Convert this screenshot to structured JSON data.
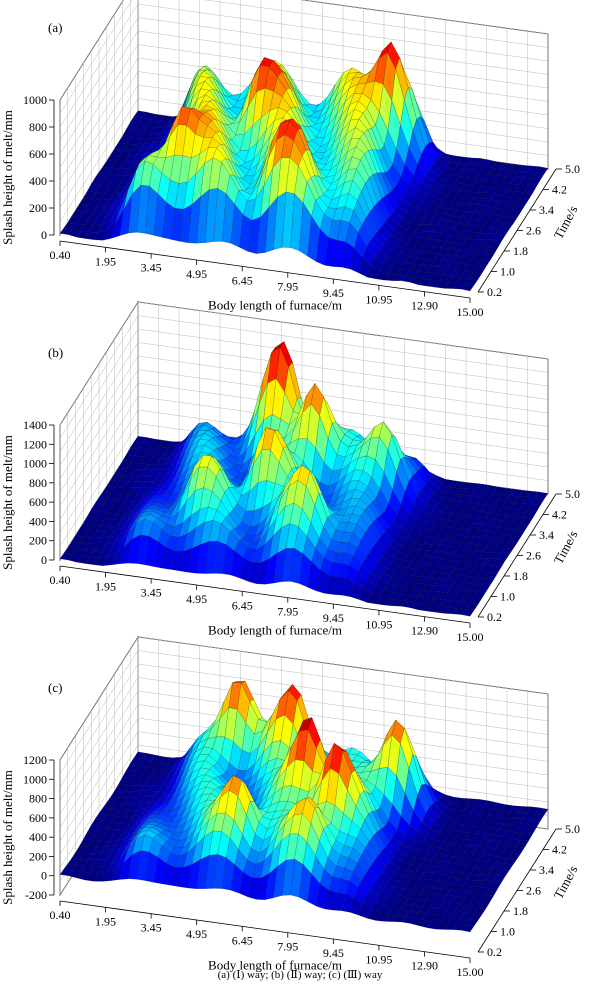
{
  "caption": "(a) (Ⅰ) way; (b) (Ⅱ) way; (c) (Ⅲ) way",
  "chart_data": [
    {
      "type": "surface3d",
      "panel_label": "(a)",
      "xlabel": "Body length of furnace/m",
      "ylabel": "Time/s",
      "zlabel": "Splash height of melt/mm",
      "x_ticks": [
        "0.40",
        "1.95",
        "3.45",
        "4.95",
        "6.45",
        "7.95",
        "9.45",
        "10.95",
        "12.90",
        "15.00"
      ],
      "y_ticks": [
        "0.2",
        "1.0",
        "1.8",
        "2.6",
        "3.4",
        "4.2",
        "5.0"
      ],
      "z_ticks": [
        "0",
        "200",
        "400",
        "600",
        "800",
        "1000"
      ],
      "xlim": [
        0.4,
        15.0
      ],
      "ylim": [
        0.2,
        5.0
      ],
      "zlim": [
        0,
        1000
      ],
      "colormap": "jet",
      "peaks": [
        {
          "x": 4.2,
          "t": 1.4,
          "z": 850
        },
        {
          "x": 8.0,
          "t": 1.2,
          "z": 880
        },
        {
          "x": 6.0,
          "t": 3.2,
          "z": 900
        },
        {
          "x": 9.8,
          "t": 4.2,
          "z": 950
        }
      ],
      "active_x_range": [
        2.5,
        10.6
      ],
      "plateau_z": 650
    },
    {
      "type": "surface3d",
      "panel_label": "(b)",
      "xlabel": "Body length of furnace/m",
      "ylabel": "Time/s",
      "zlabel": "Splash height of melt/mm",
      "x_ticks": [
        "0.40",
        "1.95",
        "3.45",
        "4.95",
        "6.45",
        "7.95",
        "9.45",
        "10.95",
        "12.90",
        "15.00"
      ],
      "y_ticks": [
        "0.2",
        "1.0",
        "1.8",
        "2.6",
        "3.4",
        "4.2",
        "5.0"
      ],
      "z_ticks": [
        "0",
        "200",
        "400",
        "600",
        "800",
        "1000",
        "1200",
        "1400"
      ],
      "xlim": [
        0.4,
        15.0
      ],
      "ylim": [
        0.2,
        5.0
      ],
      "zlim": [
        0,
        1400
      ],
      "colormap": "jet",
      "peaks": [
        {
          "x": 5.8,
          "t": 4.4,
          "z": 1400
        },
        {
          "x": 7.4,
          "t": 3.8,
          "z": 1150
        },
        {
          "x": 6.6,
          "t": 2.4,
          "z": 1050
        },
        {
          "x": 8.4,
          "t": 1.4,
          "z": 1000
        },
        {
          "x": 4.8,
          "t": 1.6,
          "z": 900
        },
        {
          "x": 9.8,
          "t": 3.8,
          "z": 850
        }
      ],
      "active_x_range": [
        2.5,
        10.6
      ],
      "plateau_z": 500
    },
    {
      "type": "surface3d",
      "panel_label": "(c)",
      "xlabel": "Body length of furnace/m",
      "ylabel": "Time/s",
      "zlabel": "Splash height of melt/mm",
      "x_ticks": [
        "0.40",
        "1.95",
        "3.45",
        "4.95",
        "6.45",
        "7.95",
        "9.45",
        "10.95",
        "12.90",
        "15.00"
      ],
      "y_ticks": [
        "0.2",
        "1.0",
        "1.8",
        "2.6",
        "3.4",
        "4.2",
        "5.0"
      ],
      "z_ticks": [
        "-200",
        "0",
        "200",
        "400",
        "600",
        "800",
        "1000",
        "1200"
      ],
      "xlim": [
        0.4,
        15.0
      ],
      "ylim": [
        0.2,
        5.0
      ],
      "zlim": [
        -200,
        1200
      ],
      "colormap": "jet",
      "peaks": [
        {
          "x": 4.2,
          "t": 4.6,
          "z": 1050
        },
        {
          "x": 6.2,
          "t": 4.4,
          "z": 1100
        },
        {
          "x": 7.6,
          "t": 3.0,
          "z": 1200
        },
        {
          "x": 9.0,
          "t": 2.4,
          "z": 1150
        },
        {
          "x": 10.2,
          "t": 4.0,
          "z": 1000
        },
        {
          "x": 6.0,
          "t": 1.4,
          "z": 950
        },
        {
          "x": 8.6,
          "t": 1.2,
          "z": 900
        }
      ],
      "active_x_range": [
        2.5,
        10.6
      ],
      "plateau_z": 500
    }
  ]
}
